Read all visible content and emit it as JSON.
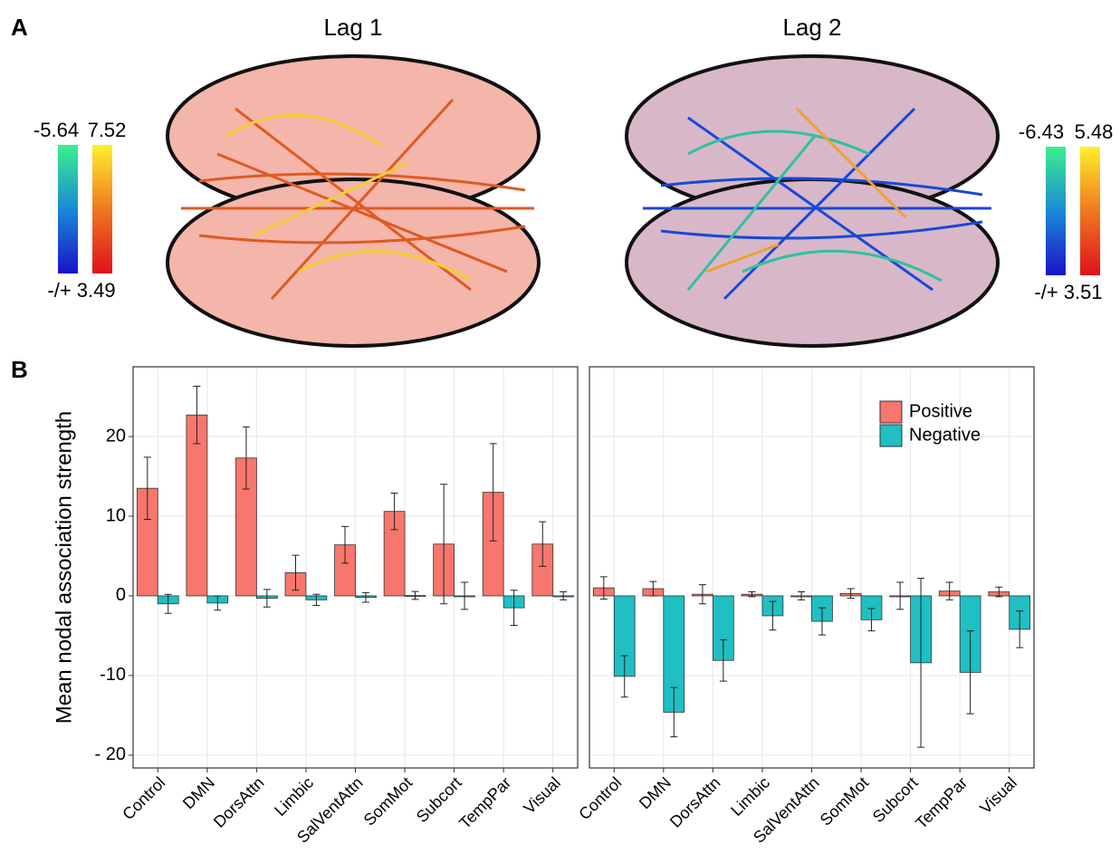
{
  "panel_labels": [
    "A",
    "B"
  ],
  "brain_panels": [
    {
      "title": "Lag 1",
      "neg_max": "-5.64",
      "pos_max": "7.52",
      "threshold": "-/+ 3.49"
    },
    {
      "title": "Lag 2",
      "neg_max": "-6.43",
      "pos_max": "5.48",
      "threshold": "-/+ 3.51"
    }
  ],
  "chart_data": [
    {
      "type": "bar",
      "y_label": "Mean nodal association strength",
      "categories": [
        "Control",
        "DMN",
        "DorsAttn",
        "Limbic",
        "SalVentAttn",
        "SomMot",
        "Subcort",
        "TempPar",
        "Visual"
      ],
      "ylim": [
        -21.6,
        28.75
      ],
      "yticks": [
        {
          "value": -20,
          "label": "- 20"
        },
        -10,
        0,
        10,
        20
      ],
      "grid": true,
      "series": [
        {
          "color": "#f8766d",
          "values": [
            13.5,
            22.7,
            17.3,
            2.9,
            6.4,
            10.6,
            6.5,
            13.0,
            6.5
          ],
          "errors": [
            3.9,
            3.6,
            3.9,
            2.2,
            2.3,
            2.3,
            7.5,
            6.1,
            2.8
          ]
        },
        {
          "color": "#1fbfc4",
          "values": [
            -1.0,
            -0.9,
            -0.3,
            -0.5,
            -0.2,
            0.05,
            0,
            -1.5,
            0
          ],
          "errors": [
            1.2,
            0.9,
            1.1,
            0.7,
            0.6,
            0.5,
            1.7,
            2.2,
            0.5
          ]
        }
      ]
    },
    {
      "type": "bar",
      "categories": [
        "Control",
        "DMN",
        "DorsAttn",
        "Limbic",
        "SalVentAttn",
        "SomMot",
        "Subcort",
        "TempPar",
        "Visual"
      ],
      "ylim": [
        -21.6,
        28.75
      ],
      "yticks": [
        -20,
        -10,
        0,
        10,
        20
      ],
      "grid": true,
      "legend": "top-right",
      "series": [
        {
          "name": "Positive",
          "color": "#f8766d",
          "values": [
            1.0,
            0.9,
            0.2,
            0.2,
            0,
            0.3,
            0,
            0.6,
            0.5
          ],
          "errors": [
            1.4,
            0.9,
            1.2,
            0.3,
            0.5,
            0.6,
            1.7,
            1.1,
            0.6
          ]
        },
        {
          "name": "Negative",
          "color": "#1fbfc4",
          "values": [
            -10.1,
            -14.6,
            -8.1,
            -2.5,
            -3.2,
            -3.0,
            -8.4,
            -9.6,
            -4.2
          ],
          "errors": [
            2.6,
            3.1,
            2.6,
            1.8,
            1.7,
            1.4,
            10.6,
            5.2,
            2.3
          ]
        }
      ]
    }
  ]
}
